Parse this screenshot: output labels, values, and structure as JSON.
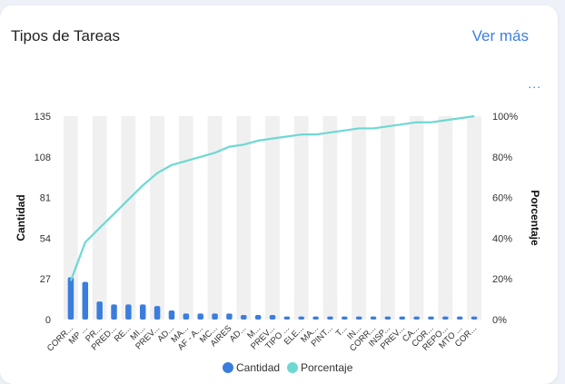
{
  "card": {
    "title": "Tipos de Tareas",
    "more_link": "Ver más",
    "menu_dots": "..."
  },
  "chart_data": {
    "type": "bar",
    "combo": "bar + line (pareto)",
    "categories": [
      "CORR...",
      "MP ...",
      "PR...",
      "PRED...",
      "RE...",
      "MI...",
      "PREV...",
      "AD...",
      "MA...",
      "AF - A...",
      "MC...",
      "AIRES",
      "AD...",
      "M...",
      "PREV...",
      "TIPO ...",
      "ELE...",
      "MA...",
      "PINT...",
      "T...",
      "IN...",
      "CORR...",
      "INSP...",
      "PREV...",
      "CA...",
      "COR...",
      "REPO...",
      "MTO ...",
      "COR..."
    ],
    "series": [
      {
        "name": "Cantidad",
        "axis": "left",
        "type": "bar",
        "color": "#3b7ddd",
        "values": [
          28,
          25,
          12,
          10,
          10,
          10,
          9,
          6,
          4,
          4,
          4,
          4,
          3,
          3,
          3,
          2,
          2,
          2,
          2,
          2,
          2,
          2,
          2,
          2,
          2,
          2,
          2,
          2,
          2
        ]
      },
      {
        "name": "Porcentaje",
        "axis": "right",
        "type": "line",
        "color": "#6ed8d3",
        "values": [
          19,
          38,
          45,
          52,
          59,
          66,
          72,
          76,
          78,
          80,
          82,
          85,
          86,
          88,
          89,
          90,
          91,
          91,
          92,
          93,
          94,
          94,
          95,
          96,
          97,
          97,
          98,
          99,
          100
        ]
      }
    ],
    "ylabel": "Cantidad",
    "y2label": "Porcentaje",
    "ylim": [
      0,
      135
    ],
    "yticks": [
      "0",
      "27",
      "54",
      "81",
      "108",
      "135"
    ],
    "y2lim": [
      0,
      100
    ],
    "y2ticks": [
      "0%",
      "20%",
      "40%",
      "60%",
      "80%",
      "100%"
    ],
    "legend": [
      "Cantidad",
      "Porcentaje"
    ],
    "legend_position": "bottom",
    "grid": "alternating vertical bands"
  }
}
